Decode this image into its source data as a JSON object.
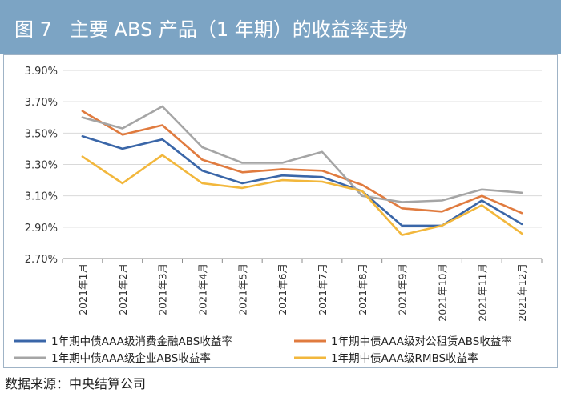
{
  "figure": {
    "number": "图 7",
    "title": "主要 ABS 产品（1 年期）的收益率走势"
  },
  "source": "数据来源：中央结算公司",
  "chart_data": {
    "type": "line",
    "title": "主要 ABS 产品（1 年期）的收益率走势",
    "xlabel": "",
    "ylabel": "",
    "ylim": [
      2.7,
      3.9
    ],
    "yticks": [
      "3.90%",
      "3.70%",
      "3.50%",
      "3.30%",
      "3.10%",
      "2.90%",
      "2.70%"
    ],
    "ytick_values": [
      3.9,
      3.7,
      3.5,
      3.3,
      3.1,
      2.9,
      2.7
    ],
    "categories": [
      "2021年1月",
      "2021年2月",
      "2021年3月",
      "2021年4月",
      "2021年5月",
      "2021年6月",
      "2021年7月",
      "2021年8月",
      "2021年9月",
      "2021年10月",
      "2021年11月",
      "2021年12月"
    ],
    "grid": true,
    "legend_position": "bottom",
    "series": [
      {
        "name": "1年期中债AAA级消费金融ABS收益率",
        "color": "#3a66a8",
        "values": [
          3.48,
          3.4,
          3.46,
          3.26,
          3.18,
          3.23,
          3.22,
          3.13,
          2.91,
          2.91,
          3.07,
          2.92
        ]
      },
      {
        "name": "1年期中债AAA级对公租赁ABS收益率",
        "color": "#e07b3f",
        "values": [
          3.64,
          3.49,
          3.55,
          3.33,
          3.25,
          3.27,
          3.26,
          3.17,
          3.02,
          3.0,
          3.1,
          2.99
        ]
      },
      {
        "name": "1年期中债AAA级企业ABS收益率",
        "color": "#a5a5a5",
        "values": [
          3.6,
          3.53,
          3.67,
          3.41,
          3.31,
          3.31,
          3.38,
          3.1,
          3.06,
          3.07,
          3.14,
          3.12
        ]
      },
      {
        "name": "1年期中债AAA级RMBS收益率",
        "color": "#f2b73c",
        "values": [
          3.35,
          3.18,
          3.36,
          3.18,
          3.15,
          3.2,
          3.19,
          3.13,
          2.85,
          2.91,
          3.04,
          2.86
        ]
      }
    ]
  }
}
